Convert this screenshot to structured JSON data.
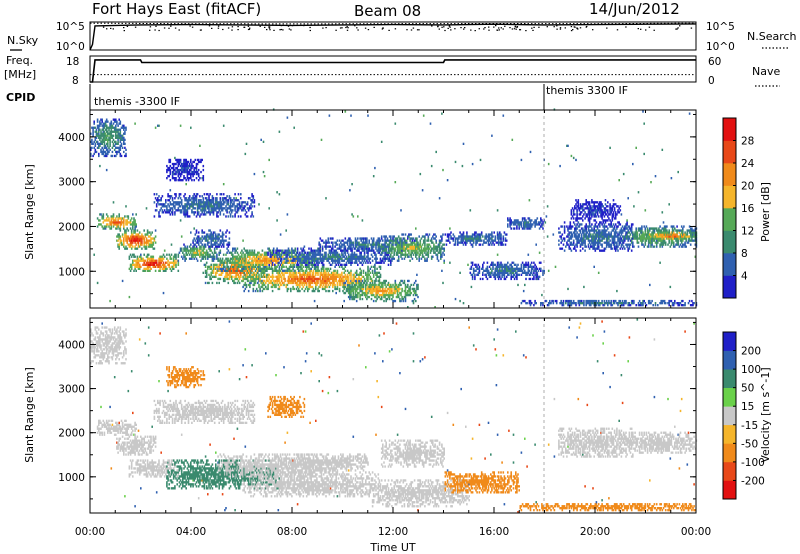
{
  "header": {
    "site": "Fort Hays East (fitACF)",
    "beam": "Beam 08",
    "date": "14/Jun/2012"
  },
  "top_panels": {
    "nsky_label": "N.Sky",
    "nsearch_label": "N.Search",
    "nsky_ticks": [
      "10^5",
      "10^0"
    ],
    "nsearch_ticks": [
      "10^5",
      "10^0"
    ],
    "freq_label_1": "Freq.",
    "freq_label_2": "[MHz]",
    "freq_ticks": [
      "18",
      "8"
    ],
    "nave_label": "Nave",
    "nave_ticks": [
      "60",
      "0"
    ],
    "cpid_label": "CPID",
    "cpid_segments": [
      "themis -3300 IF",
      "themis 3300 IF"
    ]
  },
  "colors": {
    "power": [
      "#2020c8",
      "#2f60b0",
      "#3a8a6e",
      "#56a957",
      "#f5b52b",
      "#f08a1a",
      "#e84818",
      "#e21010"
    ],
    "velocity": [
      "#e21010",
      "#e84818",
      "#f08a1a",
      "#f5b52b",
      "#c8c8c8",
      "#6ad14a",
      "#3a8a6e",
      "#2f60b0",
      "#2020c8"
    ],
    "ground_scatter": "#c8c8c8"
  },
  "chart_data": [
    {
      "type": "line",
      "title": "N.Sky / N.Search",
      "x_unit": "UT hours",
      "xlim": [
        0,
        24
      ],
      "y_scale": "log",
      "ylim": [
        1,
        100000
      ],
      "series": [
        {
          "name": "N.Sky",
          "x": [
            0,
            0.1,
            0.2,
            2,
            4,
            6,
            8,
            10,
            12,
            14,
            16,
            18,
            20,
            22,
            24
          ],
          "values": [
            1,
            10,
            20000,
            30000,
            35000,
            30000,
            25000,
            30000,
            35000,
            30000,
            40000,
            30000,
            35000,
            40000,
            45000
          ]
        },
        {
          "name": "N.Search",
          "x": [
            0,
            4,
            8,
            12,
            16,
            20,
            24
          ],
          "values": [
            60000,
            50000,
            45000,
            50000,
            55000,
            50000,
            60000
          ]
        }
      ]
    },
    {
      "type": "line",
      "title": "Freq. / Nave",
      "xlim": [
        0,
        24
      ],
      "ylim_left": [
        8,
        18
      ],
      "ylim_right": [
        0,
        60
      ],
      "series": [
        {
          "name": "Freq.",
          "x": [
            0,
            0.1,
            0.2,
            2.0,
            2.05,
            14.0,
            14.05,
            24
          ],
          "values": [
            8,
            8,
            16.5,
            16.5,
            15.5,
            15.5,
            16.5,
            16.5
          ]
        },
        {
          "name": "Nave",
          "x": [
            0,
            24
          ],
          "values": [
            17,
            17
          ]
        }
      ]
    },
    {
      "type": "table",
      "title": "CPID",
      "segments": [
        {
          "label": "themis -3300 IF",
          "start": 0,
          "end": 18
        },
        {
          "label": "themis 3300 IF",
          "start": 18,
          "end": 24
        }
      ]
    },
    {
      "type": "heatmap",
      "title": "Power",
      "xlabel": "Time UT",
      "ylabel": "Slant Range [km]",
      "colorbar_label": "Power [dB]",
      "xlim": [
        0,
        24
      ],
      "ylim": [
        180,
        4600
      ],
      "xticks": [
        "00:00",
        "04:00",
        "08:00",
        "12:00",
        "16:00",
        "20:00",
        "00:00"
      ],
      "yticks": [
        1000,
        2000,
        3000,
        4000
      ],
      "colorbar_ticks": [
        4,
        8,
        12,
        16,
        20,
        24,
        28
      ],
      "cbar_range": [
        0,
        32
      ],
      "regions": [
        {
          "t": [
            0.0,
            1.4
          ],
          "r": [
            3550,
            4400
          ],
          "p": 12
        },
        {
          "t": [
            0.2,
            1.8
          ],
          "r": [
            1900,
            2250
          ],
          "p": 24
        },
        {
          "t": [
            1.0,
            2.6
          ],
          "r": [
            1450,
            1900
          ],
          "p": 28
        },
        {
          "t": [
            1.5,
            3.5
          ],
          "r": [
            950,
            1350
          ],
          "p": 28
        },
        {
          "t": [
            3.5,
            5.0
          ],
          "r": [
            1200,
            1600
          ],
          "p": 16
        },
        {
          "t": [
            4.0,
            5.5
          ],
          "r": [
            1500,
            1900
          ],
          "p": 8
        },
        {
          "t": [
            4.5,
            7.0
          ],
          "r": [
            700,
            1300
          ],
          "p": 24
        },
        {
          "t": [
            5.0,
            9.0
          ],
          "r": [
            950,
            1500
          ],
          "p": 20
        },
        {
          "t": [
            6.0,
            11.5
          ],
          "r": [
            500,
            1100
          ],
          "p": 24
        },
        {
          "t": [
            7.0,
            12.0
          ],
          "r": [
            1100,
            1500
          ],
          "p": 8
        },
        {
          "t": [
            10.0,
            13.0
          ],
          "r": [
            300,
            800
          ],
          "p": 20
        },
        {
          "t": [
            9.0,
            13.0
          ],
          "r": [
            1400,
            1750
          ],
          "p": 8
        },
        {
          "t": [
            11.5,
            14.0
          ],
          "r": [
            1200,
            1800
          ],
          "p": 16
        },
        {
          "t": [
            14.0,
            16.5
          ],
          "r": [
            1550,
            1850
          ],
          "p": 8
        },
        {
          "t": [
            15.0,
            18.0
          ],
          "r": [
            800,
            1200
          ],
          "p": 8
        },
        {
          "t": [
            16.5,
            18.0
          ],
          "r": [
            1900,
            2200
          ],
          "p": 8
        },
        {
          "t": [
            17.0,
            24.0
          ],
          "r": [
            200,
            350
          ],
          "p": 8
        },
        {
          "t": [
            18.5,
            21.5
          ],
          "r": [
            1400,
            2100
          ],
          "p": 8
        },
        {
          "t": [
            19.0,
            21.0
          ],
          "r": [
            2100,
            2600
          ],
          "p": 4
        },
        {
          "t": [
            21.0,
            24.0
          ],
          "r": [
            1500,
            2000
          ],
          "p": 16
        },
        {
          "t": [
            22.0,
            24.0
          ],
          "r": [
            1650,
            1900
          ],
          "p": 24
        },
        {
          "t": [
            2.5,
            6.5
          ],
          "r": [
            2200,
            2700
          ],
          "p": 8
        },
        {
          "t": [
            3.0,
            4.5
          ],
          "r": [
            3000,
            3500
          ],
          "p": 4
        }
      ]
    },
    {
      "type": "heatmap",
      "title": "Velocity",
      "xlabel": "Time UT",
      "ylabel": "Slant Range [km]",
      "colorbar_label": "Velocity [m s^-1]",
      "xlim": [
        0,
        24
      ],
      "ylim": [
        180,
        4600
      ],
      "xticks": [
        "00:00",
        "04:00",
        "08:00",
        "12:00",
        "16:00",
        "20:00",
        "00:00"
      ],
      "yticks": [
        1000,
        2000,
        3000,
        4000
      ],
      "colorbar_ticks": [
        200,
        100,
        50,
        15,
        -15,
        -50,
        -100,
        -200
      ],
      "regions": [
        {
          "t": [
            0.0,
            1.4
          ],
          "r": [
            3550,
            4400
          ],
          "v": 0
        },
        {
          "t": [
            0.2,
            1.8
          ],
          "r": [
            1900,
            2250
          ],
          "v": 0
        },
        {
          "t": [
            1.0,
            2.6
          ],
          "r": [
            1450,
            1900
          ],
          "v": 0
        },
        {
          "t": [
            1.5,
            3.5
          ],
          "r": [
            950,
            1350
          ],
          "v": 0
        },
        {
          "t": [
            3.0,
            7.5
          ],
          "r": [
            700,
            1350
          ],
          "v": 70
        },
        {
          "t": [
            5.0,
            9.5
          ],
          "r": [
            950,
            1500
          ],
          "v": 0
        },
        {
          "t": [
            6.0,
            11.5
          ],
          "r": [
            500,
            1100
          ],
          "v": 0
        },
        {
          "t": [
            8.0,
            11.0
          ],
          "r": [
            1100,
            1500
          ],
          "v": 0
        },
        {
          "t": [
            11.0,
            15.0
          ],
          "r": [
            300,
            900
          ],
          "v": 0
        },
        {
          "t": [
            11.5,
            14.0
          ],
          "r": [
            1200,
            1800
          ],
          "v": 0
        },
        {
          "t": [
            14.0,
            17.0
          ],
          "r": [
            600,
            1100
          ],
          "v": -70
        },
        {
          "t": [
            17.0,
            24.0
          ],
          "r": [
            200,
            400
          ],
          "v": -70
        },
        {
          "t": [
            18.5,
            21.5
          ],
          "r": [
            1400,
            2100
          ],
          "v": 0
        },
        {
          "t": [
            21.0,
            24.0
          ],
          "r": [
            1500,
            2000
          ],
          "v": 0
        },
        {
          "t": [
            2.5,
            6.5
          ],
          "r": [
            2200,
            2700
          ],
          "v": 0
        },
        {
          "t": [
            3.0,
            4.5
          ],
          "r": [
            3000,
            3500
          ],
          "v": -70
        },
        {
          "t": [
            7.0,
            8.5
          ],
          "r": [
            2300,
            2800
          ],
          "v": -70
        }
      ]
    }
  ]
}
